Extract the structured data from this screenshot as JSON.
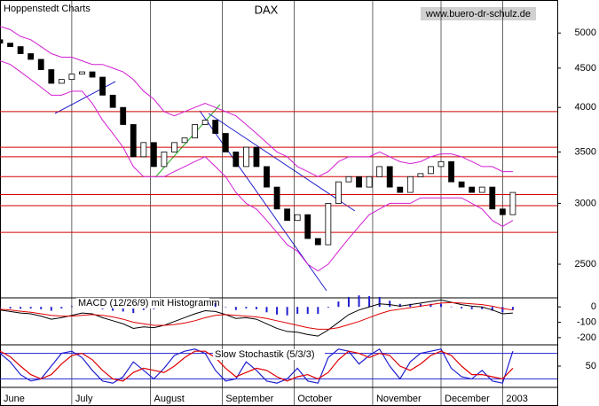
{
  "chart_data": [
    {
      "type": "candlestick",
      "source": "Hoppenstedt Charts",
      "title": "DAX",
      "url": "www.buero-dr-schulz.de",
      "log_scale": true,
      "ylim": [
        2260,
        5520
      ],
      "yticks": [
        2500,
        3000,
        3500,
        4000,
        4500,
        5000
      ],
      "xlim": [
        0,
        163
      ],
      "xticks": [
        {
          "value": 0,
          "label": "June"
        },
        {
          "value": 21,
          "label": "July"
        },
        {
          "value": 44,
          "label": "August"
        },
        {
          "value": 65,
          "label": "September"
        },
        {
          "value": 86,
          "label": "October"
        },
        {
          "value": 109,
          "label": "November"
        },
        {
          "value": 129,
          "label": "December"
        },
        {
          "value": 147,
          "label": "2003"
        }
      ],
      "x": [
        0,
        3,
        6,
        9,
        12,
        15,
        18,
        21,
        24,
        27,
        30,
        33,
        36,
        39,
        42,
        45,
        48,
        51,
        54,
        57,
        60,
        63,
        66,
        69,
        72,
        75,
        78,
        81,
        84,
        87,
        90,
        93,
        96,
        99,
        102,
        105,
        108,
        111,
        114,
        117,
        120,
        123,
        126,
        129,
        132,
        135,
        138,
        141,
        144,
        147,
        150
      ],
      "open": [
        4900,
        4850,
        4800,
        4700,
        4620,
        4480,
        4300,
        4350,
        4420,
        4450,
        4380,
        4150,
        4000,
        3800,
        3450,
        3600,
        3350,
        3500,
        3600,
        3650,
        3800,
        3850,
        3700,
        3500,
        3350,
        3550,
        3350,
        3150,
        2950,
        2850,
        2900,
        2700,
        2650,
        3000,
        3200,
        3250,
        3150,
        3250,
        3350,
        3150,
        3100,
        3250,
        3280,
        3350,
        3400,
        3200,
        3150,
        3100,
        3150,
        2950,
        2900
      ],
      "close": [
        4850,
        4800,
        4700,
        4620,
        4480,
        4300,
        4350,
        4420,
        4450,
        4380,
        4150,
        4000,
        3800,
        3450,
        3600,
        3350,
        3500,
        3600,
        3650,
        3800,
        3850,
        3700,
        3500,
        3350,
        3550,
        3350,
        3150,
        2950,
        2850,
        2900,
        2700,
        2650,
        3000,
        3200,
        3250,
        3150,
        3250,
        3350,
        3150,
        3100,
        3250,
        3280,
        3350,
        3400,
        3200,
        3150,
        3100,
        3150,
        2950,
        2900,
        3100
      ],
      "upper": [
        5100,
        5050,
        4950,
        4900,
        4800,
        4700,
        4650,
        4650,
        4600,
        4550,
        4550,
        4500,
        4450,
        4350,
        4200,
        4100,
        3950,
        3900,
        3950,
        4000,
        4050,
        4000,
        3950,
        3900,
        3800,
        3700,
        3600,
        3500,
        3450,
        3350,
        3300,
        3250,
        3300,
        3400,
        3450,
        3450,
        3450,
        3500,
        3450,
        3400,
        3380,
        3400,
        3450,
        3480,
        3480,
        3450,
        3400,
        3350,
        3350,
        3300,
        3300
      ],
      "lower": [
        4600,
        4550,
        4450,
        4350,
        4250,
        4150,
        4150,
        4200,
        4200,
        4050,
        3850,
        3700,
        3550,
        3350,
        3250,
        3250,
        3250,
        3300,
        3350,
        3400,
        3450,
        3350,
        3250,
        3100,
        3000,
        2950,
        2850,
        2750,
        2650,
        2600,
        2500,
        2450,
        2500,
        2600,
        2700,
        2800,
        2900,
        2950,
        3000,
        3000,
        3000,
        3050,
        3050,
        3050,
        3050,
        3050,
        3000,
        2950,
        2850,
        2800,
        2850
      ],
      "band_color": "#d21ed2",
      "levels": [
        3950,
        3550,
        3450,
        3250,
        3080,
        2980,
        2750
      ],
      "level_color": "#d40000"
    },
    {
      "type": "macd",
      "title": "MACD (12/26/9) mit Histogramm",
      "ylim": [
        -247,
        59
      ],
      "yticks": [
        0,
        -100,
        -200
      ],
      "series": [
        {
          "color": "#000000",
          "values": [
            -20,
            -30,
            -40,
            -45,
            -60,
            -80,
            -70,
            -55,
            -40,
            -45,
            -70,
            -90,
            -110,
            -140,
            -130,
            -135,
            -120,
            -95,
            -70,
            -45,
            -25,
            -30,
            -50,
            -75,
            -70,
            -80,
            -110,
            -140,
            -160,
            -165,
            -180,
            -190,
            -150,
            -100,
            -50,
            -20,
            0,
            20,
            15,
            5,
            15,
            25,
            35,
            45,
            30,
            15,
            5,
            0,
            -20,
            -45,
            -40
          ]
        },
        {
          "color": "#e00000",
          "values": [
            -15,
            -20,
            -28,
            -35,
            -45,
            -55,
            -60,
            -60,
            -55,
            -50,
            -55,
            -65,
            -80,
            -100,
            -110,
            -120,
            -120,
            -115,
            -105,
            -90,
            -70,
            -55,
            -50,
            -55,
            -60,
            -65,
            -75,
            -90,
            -105,
            -120,
            -135,
            -145,
            -145,
            -135,
            -115,
            -95,
            -70,
            -45,
            -25,
            -15,
            -5,
            5,
            15,
            25,
            28,
            25,
            20,
            15,
            5,
            -10,
            -20
          ]
        }
      ],
      "histogram": {
        "color": "#2020d0",
        "values": [
          -5,
          -10,
          -12,
          -10,
          -15,
          -25,
          -10,
          5,
          15,
          5,
          -15,
          -25,
          -30,
          -40,
          -20,
          -15,
          0,
          20,
          35,
          45,
          45,
          25,
          0,
          -20,
          -10,
          -15,
          -35,
          -50,
          -55,
          -45,
          -45,
          -45,
          -5,
          35,
          65,
          75,
          70,
          65,
          40,
          20,
          20,
          20,
          20,
          20,
          2,
          -10,
          -15,
          -15,
          -25,
          -35,
          -20
        ]
      }
    },
    {
      "type": "line",
      "title": "Slow Stochastik (5/3/3)",
      "ylim": [
        0,
        100
      ],
      "yticks": [
        50
      ],
      "hlines": [
        80,
        20
      ],
      "hline_color": "#2020d0",
      "series": [
        {
          "color": "#2020d0",
          "values": [
            80,
            60,
            30,
            15,
            20,
            50,
            80,
            85,
            70,
            40,
            15,
            10,
            25,
            60,
            40,
            20,
            45,
            75,
            85,
            90,
            80,
            40,
            15,
            20,
            60,
            40,
            15,
            10,
            20,
            45,
            15,
            10,
            70,
            90,
            85,
            55,
            75,
            90,
            50,
            20,
            60,
            80,
            85,
            90,
            45,
            25,
            20,
            40,
            15,
            10,
            85
          ]
        },
        {
          "color": "#e00000",
          "values": [
            85,
            72,
            50,
            30,
            20,
            30,
            55,
            75,
            80,
            65,
            40,
            20,
            15,
            35,
            45,
            40,
            35,
            50,
            70,
            85,
            85,
            70,
            45,
            25,
            35,
            45,
            40,
            25,
            15,
            25,
            30,
            20,
            35,
            65,
            85,
            80,
            70,
            80,
            75,
            50,
            40,
            55,
            75,
            85,
            75,
            50,
            30,
            30,
            25,
            20,
            45
          ]
        }
      ]
    }
  ]
}
